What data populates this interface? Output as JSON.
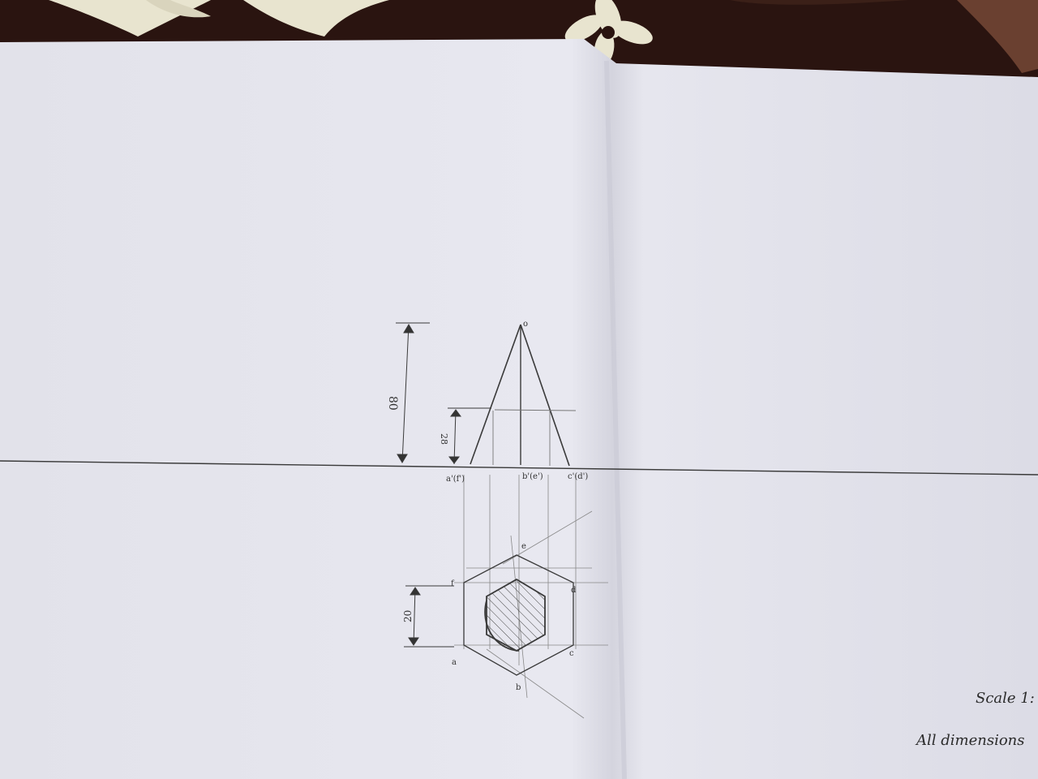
{
  "photo": {
    "subject": "Orthographic projection drawing of a hexagonal pyramid on white paper",
    "colors": {
      "paper": "#e6e6ee",
      "paper_shadow": "#cfcfd9",
      "pencil": "#3a3a3a",
      "cloth_dark": "#2a1410",
      "cloth_light": "#e8e4cf"
    }
  },
  "drawing": {
    "labels": {
      "apex": "o",
      "point_a_front": "a'(f')",
      "point_b_front": "b'(e')",
      "point_c_front": "c'(d')",
      "point_a": "a",
      "point_b": "b",
      "point_c": "c",
      "point_d": "d",
      "point_e": "e",
      "point_f": "f"
    },
    "dimensions": {
      "height": "80",
      "cut_height": "28",
      "base_side": "20"
    },
    "notes": {
      "scale": "Scale 1:",
      "units": "All dimensions"
    }
  }
}
